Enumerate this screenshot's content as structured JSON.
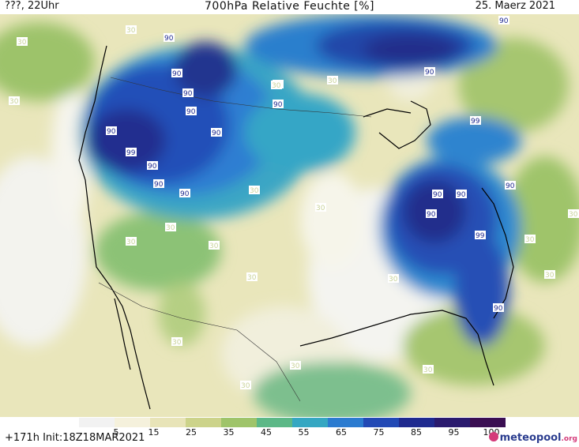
{
  "header": {
    "left": "???, 22Uhr",
    "center": "700hPa Relative Feuchte [%]",
    "right": "25. Maerz 2021"
  },
  "footer": {
    "run": "+171h  Init:18Z18MAR2021",
    "logo_main": "meteopool",
    "logo_suffix": ".org"
  },
  "colorbar": {
    "ticks": [
      "5",
      "15",
      "25",
      "35",
      "45",
      "55",
      "65",
      "75",
      "85",
      "95",
      "100"
    ],
    "colors": [
      "#f2f2f2",
      "#f5f1dc",
      "#e8e4b8",
      "#ccd38a",
      "#9fc46a",
      "#5cb887",
      "#35a7c2",
      "#2b7bd0",
      "#2249b5",
      "#1f2a8f",
      "#2a1a6e",
      "#3a0e52"
    ]
  },
  "contour_labels": [
    "30",
    "90",
    "30",
    "90",
    "90",
    "90",
    "90",
    "30",
    "90",
    "90",
    "30",
    "30",
    "90",
    "99",
    "90",
    "90",
    "90",
    "30",
    "30",
    "30",
    "30",
    "30",
    "30",
    "30",
    "30",
    "90",
    "90",
    "90",
    "99",
    "99",
    "90",
    "90",
    "30",
    "30",
    "30",
    "90",
    "30",
    "30",
    "30",
    "30"
  ]
}
